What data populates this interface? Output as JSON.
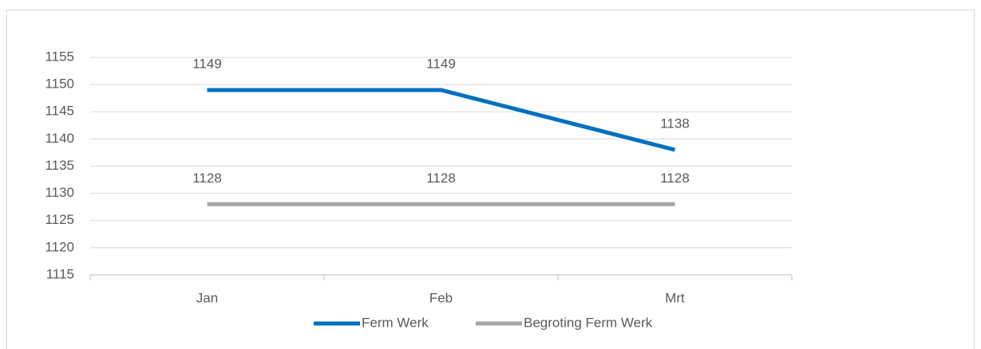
{
  "chart_data": {
    "type": "line",
    "categories": [
      "Jan",
      "Feb",
      "Mrt"
    ],
    "series": [
      {
        "name": "Ferm Werk",
        "color": "#0070c0",
        "values": [
          1149,
          1149,
          1138
        ]
      },
      {
        "name": "Begroting Ferm Werk",
        "color": "#a5a5a5",
        "values": [
          1128,
          1128,
          1128
        ]
      }
    ],
    "ylim": [
      1115,
      1155
    ],
    "yticks": [
      1115,
      1120,
      1125,
      1130,
      1135,
      1140,
      1145,
      1150,
      1155
    ],
    "grid": true,
    "legend": "bottom",
    "data_labels": true
  }
}
